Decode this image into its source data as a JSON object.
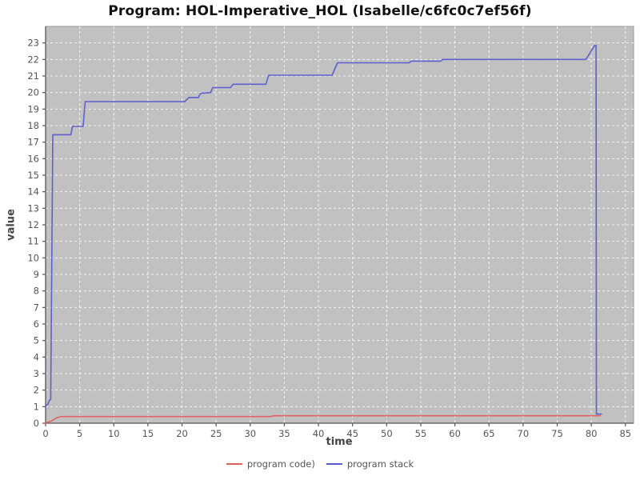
{
  "title": "Program: HOL-Imperative_HOL (Isabelle/c6fc0c7ef56f)",
  "colors": {
    "plot_bg": "#c1c1c1",
    "plot_border": "#9a9a9a",
    "grid": "#ffffff",
    "axis": "#555555",
    "tick_text": "#555555",
    "code_series": "#e25d5d",
    "stack_series": "#5a5ad0"
  },
  "chart_data": {
    "type": "line",
    "title": "Program: HOL-Imperative_HOL (Isabelle/c6fc0c7ef56f)",
    "xlabel": "time",
    "ylabel": "value",
    "xlim": [
      0,
      86.2
    ],
    "ylim": [
      0,
      24
    ],
    "xticks": [
      0,
      5,
      10,
      15,
      20,
      25,
      30,
      35,
      40,
      45,
      50,
      55,
      60,
      65,
      70,
      75,
      80,
      85
    ],
    "yticks": [
      0,
      1,
      2,
      3,
      4,
      5,
      6,
      7,
      8,
      9,
      10,
      11,
      12,
      13,
      14,
      15,
      16,
      17,
      18,
      19,
      20,
      21,
      22,
      23
    ],
    "grid": true,
    "legend_position": "bottom",
    "series": [
      {
        "name": "program code)",
        "color": "#e25d5d",
        "points": [
          [
            0,
            0.02
          ],
          [
            0.8,
            0.12
          ],
          [
            1.5,
            0.3
          ],
          [
            2.2,
            0.4
          ],
          [
            33.0,
            0.4
          ],
          [
            33.5,
            0.45
          ],
          [
            81.3,
            0.45
          ]
        ]
      },
      {
        "name": "program stack",
        "color": "#5a5ad0",
        "points": [
          [
            0,
            1.05
          ],
          [
            0.35,
            1.15
          ],
          [
            0.5,
            1.35
          ],
          [
            0.75,
            1.45
          ],
          [
            1.05,
            17.45
          ],
          [
            3.7,
            17.45
          ],
          [
            3.95,
            17.95
          ],
          [
            5.5,
            17.95
          ],
          [
            5.8,
            19.45
          ],
          [
            20.4,
            19.45
          ],
          [
            21.0,
            19.7
          ],
          [
            22.4,
            19.7
          ],
          [
            22.7,
            19.95
          ],
          [
            24.2,
            20.0
          ],
          [
            24.5,
            20.3
          ],
          [
            27.1,
            20.3
          ],
          [
            27.5,
            20.5
          ],
          [
            32.3,
            20.5
          ],
          [
            32.7,
            21.05
          ],
          [
            42.0,
            21.05
          ],
          [
            42.8,
            21.8
          ],
          [
            53.3,
            21.8
          ],
          [
            53.6,
            21.9
          ],
          [
            57.9,
            21.9
          ],
          [
            58.2,
            22.0
          ],
          [
            79.2,
            22.0
          ],
          [
            80.5,
            22.85
          ],
          [
            80.7,
            22.85
          ],
          [
            80.75,
            0.55
          ],
          [
            81.5,
            0.55
          ]
        ]
      }
    ]
  }
}
